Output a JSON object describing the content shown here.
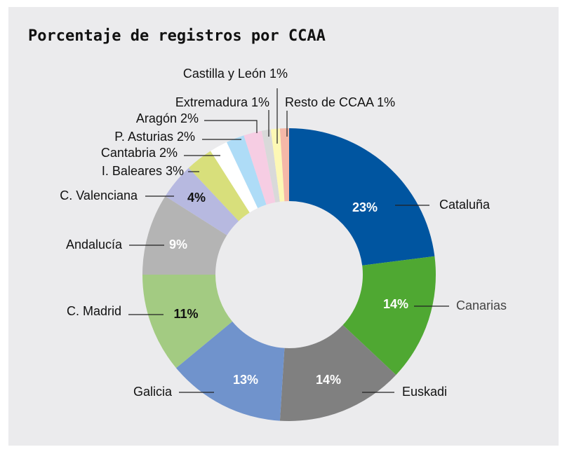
{
  "chart_data": {
    "type": "donut",
    "title": "Porcentaje de registros por CCAA",
    "categories": [
      "Cataluña",
      "Canarias",
      "Euskadi",
      "Galicia",
      "C. Madrid",
      "Andalucía",
      "C. Valenciana",
      "I. Baleares",
      "Cantabria",
      "P. Asturias",
      "Aragón",
      "Extremadura",
      "Castilla y León",
      "Resto de CCAA"
    ],
    "values": [
      23,
      14,
      14,
      13,
      11,
      9,
      4,
      3,
      2,
      2,
      2,
      1,
      1,
      1
    ],
    "value_labels": [
      "23%",
      "14%",
      "14%",
      "13%",
      "11%",
      "9%",
      "4%",
      "3%",
      "2%",
      "2%",
      "2%",
      "1%",
      "1%",
      "1%"
    ],
    "colors": [
      "#0055a0",
      "#4fa832",
      "#808080",
      "#7093cc",
      "#a3cb82",
      "#b4b4b4",
      "#b7b9e0",
      "#d8df7b",
      "#ffffff",
      "#aedcf7",
      "#f6cde3",
      "#d9d9d9",
      "#fdf8b5",
      "#f5b8a8"
    ]
  }
}
